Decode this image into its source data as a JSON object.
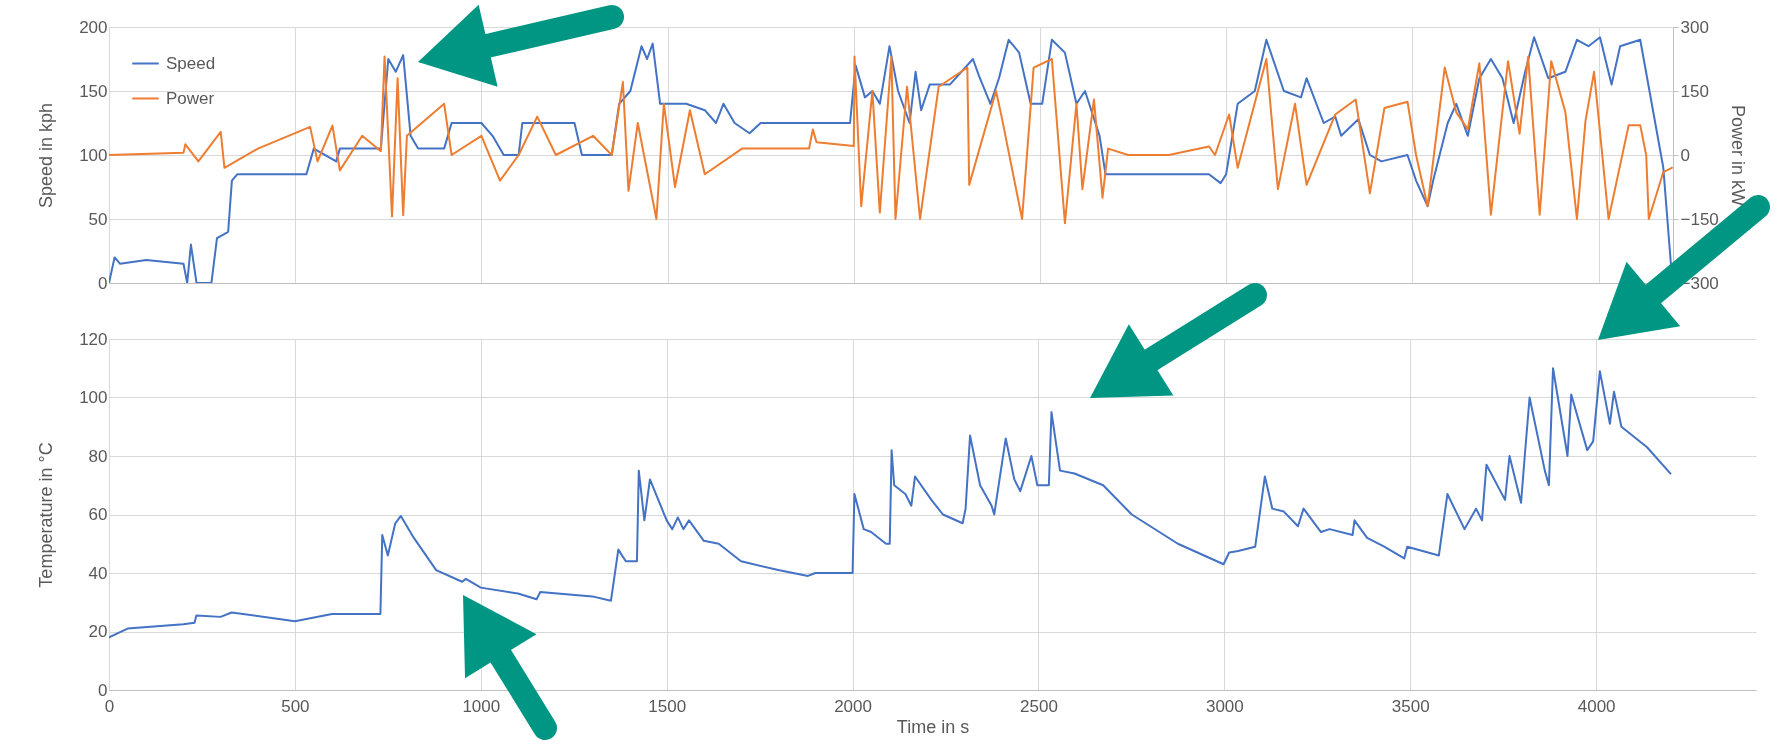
{
  "chart_data": [
    {
      "type": "line",
      "ylabel": "Speed in kph",
      "y2label": "Power in kW",
      "xlim": [
        0,
        4200
      ],
      "xticks": [
        0,
        500,
        1000,
        1500,
        2000,
        2500,
        3000,
        3500,
        4000
      ],
      "ylim": [
        0,
        200
      ],
      "yticks": [
        0,
        50,
        100,
        150,
        200
      ],
      "y2lim": [
        -300,
        300
      ],
      "y2ticks": [
        -300,
        -150,
        0,
        150,
        300
      ],
      "tick_labels": "y",
      "grid": true,
      "legend": "top left",
      "line_style": "solid",
      "series": [
        {
          "name": "Speed",
          "color": "#4472c4",
          "x": [
            0,
            15,
            30,
            100,
            200,
            210,
            220,
            235,
            275,
            290,
            320,
            330,
            345,
            530,
            550,
            610,
            620,
            730,
            750,
            770,
            790,
            810,
            830,
            900,
            920,
            1000,
            1030,
            1060,
            1100,
            1110,
            1250,
            1270,
            1350,
            1370,
            1400,
            1430,
            1445,
            1460,
            1480,
            1550,
            1600,
            1630,
            1650,
            1680,
            1720,
            1750,
            1990,
            2005,
            2030,
            2050,
            2070,
            2096,
            2119,
            2150,
            2166,
            2181,
            2204,
            2258,
            2320,
            2336,
            2367,
            2390,
            2416,
            2444,
            2475,
            2506,
            2532,
            2567,
            2598,
            2621,
            2660,
            2676,
            2954,
            2985,
            3000,
            3031,
            3077,
            3108,
            3155,
            3201,
            3216,
            3262,
            3293,
            3309,
            3355,
            3386,
            3417,
            3487,
            3510,
            3541,
            3556,
            3595,
            3618,
            3649,
            3680,
            3711,
            3742,
            3772,
            3803,
            3827,
            3865,
            3911,
            3942,
            3973,
            4004,
            4035,
            4058,
            4112,
            4143,
            4174,
            4197
          ],
          "values": [
            0,
            20,
            15,
            18,
            15,
            0,
            30,
            0,
            0,
            35,
            40,
            80,
            85,
            85,
            105,
            95,
            105,
            105,
            175,
            165,
            178,
            115,
            105,
            105,
            125,
            125,
            115,
            100,
            100,
            125,
            125,
            100,
            100,
            140,
            150,
            185,
            175,
            187,
            140,
            140,
            135,
            125,
            140,
            125,
            117,
            125,
            125,
            170,
            145,
            150,
            140,
            185,
            150,
            125,
            165,
            135,
            155,
            155,
            175,
            162,
            140,
            160,
            190,
            180,
            140,
            140,
            190,
            180,
            140,
            150,
            115,
            85,
            85,
            78,
            85,
            140,
            150,
            190,
            150,
            145,
            160,
            125,
            130,
            115,
            128,
            100,
            95,
            100,
            80,
            60,
            80,
            125,
            140,
            115,
            160,
            175,
            160,
            125,
            165,
            192,
            160,
            165,
            190,
            185,
            192,
            155,
            185,
            190,
            140,
            90,
            5
          ]
        },
        {
          "name": "Power",
          "color": "#ed7d31",
          "axis": "y2",
          "x": [
            0,
            200,
            205,
            240,
            300,
            310,
            400,
            540,
            560,
            600,
            620,
            680,
            730,
            740,
            760,
            775,
            790,
            800,
            900,
            920,
            1000,
            1050,
            1100,
            1150,
            1200,
            1300,
            1350,
            1380,
            1395,
            1420,
            1470,
            1490,
            1520,
            1560,
            1600,
            1700,
            1880,
            1890,
            1900,
            2000,
            2002,
            2020,
            2050,
            2070,
            2101,
            2112,
            2143,
            2178,
            2228,
            2305,
            2310,
            2382,
            2397,
            2452,
            2483,
            2532,
            2567,
            2598,
            2614,
            2645,
            2668,
            2683,
            2737,
            2846,
            2954,
            2970,
            3008,
            3031,
            3108,
            3139,
            3185,
            3216,
            3293,
            3348,
            3386,
            3425,
            3487,
            3510,
            3541,
            3587,
            3618,
            3649,
            3680,
            3711,
            3757,
            3788,
            3811,
            3842,
            3873,
            3911,
            3942,
            3965,
            3988,
            4027,
            4081,
            4112,
            4128,
            4135,
            4174,
            4197
          ],
          "values": [
            0,
            5,
            25,
            -15,
            54,
            -30,
            15,
            66,
            -15,
            69,
            -36,
            45,
            9,
            231,
            -144,
            180,
            -141,
            45,
            120,
            0,
            45,
            -60,
            0,
            90,
            0,
            45,
            0,
            171,
            -84,
            75,
            -150,
            120,
            -75,
            105,
            -45,
            15,
            15,
            60,
            30,
            21,
            231,
            -120,
            150,
            -135,
            230,
            -150,
            160,
            -150,
            160,
            205,
            -70,
            150,
            90,
            -150,
            205,
            225,
            -160,
            120,
            -80,
            130,
            -100,
            15,
            0,
            0,
            20,
            0,
            95,
            -30,
            225,
            -80,
            120,
            -70,
            95,
            130,
            -90,
            110,
            125,
            0,
            -120,
            205,
            100,
            60,
            215,
            -140,
            220,
            50,
            230,
            -140,
            220,
            100,
            -150,
            80,
            195,
            -150,
            70,
            70,
            0,
            -150,
            -40,
            -30
          ]
        }
      ]
    },
    {
      "type": "line",
      "xlabel": "Time in s",
      "ylabel": "Temperature in °C",
      "xlim": [
        0,
        4430
      ],
      "xticks": [
        0,
        500,
        1000,
        1500,
        2000,
        2500,
        3000,
        3500,
        4000
      ],
      "ylim": [
        0,
        120
      ],
      "yticks": [
        0,
        20,
        40,
        60,
        80,
        100,
        120
      ],
      "grid": true,
      "line_style": "solid",
      "series": [
        {
          "color": "#4472c4",
          "x": [
            0,
            50,
            200,
            230,
            235,
            300,
            330,
            500,
            600,
            730,
            735,
            750,
            770,
            785,
            820,
            880,
            950,
            960,
            1000,
            1100,
            1150,
            1160,
            1300,
            1350,
            1370,
            1390,
            1420,
            1425,
            1440,
            1455,
            1500,
            1515,
            1530,
            1545,
            1560,
            1600,
            1640,
            1700,
            1800,
            1880,
            1900,
            2000,
            2005,
            2030,
            2050,
            2090,
            2100,
            2105,
            2112,
            2142,
            2158,
            2168,
            2212,
            2243,
            2296,
            2304,
            2316,
            2343,
            2374,
            2381,
            2412,
            2435,
            2451,
            2481,
            2497,
            2528,
            2535,
            2558,
            2597,
            2674,
            2751,
            2875,
            2998,
            3013,
            3037,
            3083,
            3109,
            3129,
            3160,
            3198,
            3213,
            3260,
            3283,
            3345,
            3350,
            3384,
            3430,
            3484,
            3492,
            3577,
            3600,
            3646,
            3677,
            3693,
            3705,
            3755,
            3767,
            3798,
            3808,
            3821,
            3862,
            3873,
            3884,
            3923,
            3933,
            3976,
            3992,
            4010,
            4037,
            4048,
            4068,
            4137,
            4200
          ],
          "values": [
            18,
            21,
            22.5,
            23,
            25.5,
            25,
            26.5,
            23.5,
            26,
            26,
            53,
            46,
            57,
            59.5,
            52,
            41,
            37,
            38,
            35,
            33,
            31,
            33.5,
            32,
            30.5,
            48,
            44,
            44,
            75,
            58,
            72,
            58,
            55,
            59,
            55,
            58,
            51,
            50,
            44,
            41,
            39,
            40,
            40,
            67,
            55,
            54,
            50,
            50,
            82,
            70,
            67,
            63,
            73,
            65,
            60,
            57,
            62,
            87,
            70,
            63,
            60,
            86,
            72,
            68,
            80,
            70,
            70,
            95,
            75,
            74,
            70,
            60,
            50,
            43,
            47,
            47.5,
            49,
            73,
            62,
            61,
            56,
            62,
            54,
            55,
            53,
            58,
            52,
            49,
            45,
            49,
            46,
            67,
            55,
            62,
            58,
            77,
            65,
            80,
            64,
            80,
            100,
            75,
            70,
            110,
            80,
            101,
            82,
            85,
            109,
            91,
            102,
            90,
            83,
            74
          ]
        }
      ]
    }
  ]
}
